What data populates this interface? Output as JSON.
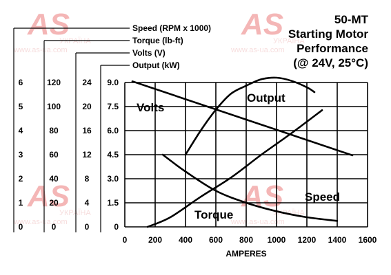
{
  "watermark": {
    "logo_text": "AS",
    "logo_sub": "УКРАЇНА",
    "url": "www.as-ua.com",
    "color": "#e03030"
  },
  "chart_data": {
    "type": "line",
    "title_lines": [
      "50-MT",
      "Starting Motor",
      "Performance",
      "(@ 24V, 25°C)"
    ],
    "xlabel": "AMPERES",
    "x_ticks": [
      "0",
      "200",
      "400",
      "600",
      "800",
      "1000",
      "1200",
      "1400",
      "1600"
    ],
    "xlim": [
      0,
      1600
    ],
    "grid": true,
    "axes": [
      {
        "name": "Speed (RPM x 1000)",
        "ticks": [
          "0",
          "1",
          "2",
          "3",
          "4",
          "5",
          "6"
        ],
        "ylim": [
          0,
          6
        ]
      },
      {
        "name": "Torque (lb-ft)",
        "ticks": [
          "0",
          "20",
          "40",
          "60",
          "80",
          "100",
          "120"
        ],
        "ylim": [
          0,
          120
        ]
      },
      {
        "name": "Volts (V)",
        "ticks": [
          "0",
          "4",
          "8",
          "12",
          "16",
          "20",
          "24"
        ],
        "ylim": [
          0,
          24
        ]
      },
      {
        "name": "Output (kW)",
        "ticks": [
          "0",
          "1.5",
          "3.0",
          "4.5",
          "6.0",
          "7.5",
          "9.0"
        ],
        "ylim": [
          0,
          9
        ]
      }
    ],
    "series": [
      {
        "name": "Volts",
        "axis": 2,
        "x": [
          50,
          1500
        ],
        "y": [
          24.2,
          11.9
        ]
      },
      {
        "name": "Output",
        "axis": 3,
        "x": [
          400,
          500,
          600,
          700,
          800,
          900,
          1000,
          1100,
          1200,
          1250
        ],
        "y": [
          4.5,
          6.0,
          7.3,
          8.3,
          8.8,
          9.2,
          9.3,
          9.1,
          8.7,
          8.4
        ]
      },
      {
        "name": "Torque",
        "axis": 1,
        "x": [
          150,
          300,
          500,
          700,
          900,
          1100,
          1300
        ],
        "y": [
          0,
          8,
          25,
          41,
          60,
          78,
          97
        ]
      },
      {
        "name": "Speed",
        "axis": 0,
        "x": [
          250,
          400,
          600,
          800,
          1000,
          1200,
          1400
        ],
        "y": [
          3.0,
          2.3,
          1.5,
          1.0,
          0.65,
          0.4,
          0.25
        ]
      }
    ]
  }
}
